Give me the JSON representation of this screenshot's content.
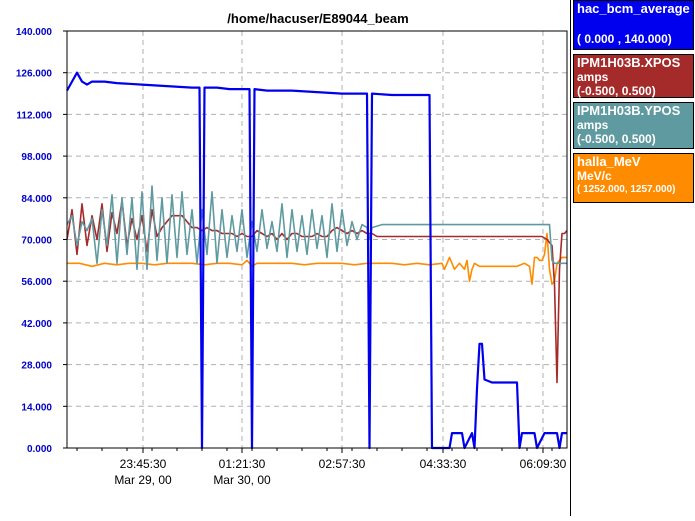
{
  "chart_data": {
    "type": "line",
    "title": "/home/hacuser/E89044_beam",
    "y_ticks": [
      "140.000",
      "126.000",
      "112.000",
      "98.000",
      "84.000",
      "70.000",
      "56.000",
      "42.000",
      "28.000",
      "14.000",
      "0.000"
    ],
    "ylim": [
      0,
      140
    ],
    "x_ticks": [
      {
        "time": "23:45:30",
        "date": "Mar 29, 00"
      },
      {
        "time": "01:21:30",
        "date": "Mar 30, 00"
      },
      {
        "time": "02:57:30",
        "date": ""
      },
      {
        "time": "04:33:30",
        "date": ""
      },
      {
        "time": "06:09:30",
        "date": ""
      }
    ],
    "grid": true,
    "legend_position": "right",
    "series": [
      {
        "name": "hac_bcm_average",
        "unit": "",
        "range": "( 0.000   ,  140.000)",
        "color": "#0000ee",
        "points": [
          [
            0,
            120
          ],
          [
            2,
            123
          ],
          [
            4,
            126
          ],
          [
            6,
            123
          ],
          [
            8,
            122
          ],
          [
            10,
            123
          ],
          [
            15,
            123
          ],
          [
            20,
            122.5
          ],
          [
            30,
            122
          ],
          [
            40,
            121.5
          ],
          [
            50,
            121
          ],
          [
            53,
            121
          ],
          [
            54,
            0
          ],
          [
            55,
            121
          ],
          [
            60,
            121
          ],
          [
            65,
            120.5
          ],
          [
            70,
            120.5
          ],
          [
            73,
            120.5
          ],
          [
            74,
            0
          ],
          [
            75,
            120.5
          ],
          [
            80,
            120
          ],
          [
            90,
            120
          ],
          [
            100,
            119.5
          ],
          [
            110,
            119
          ],
          [
            120,
            119
          ],
          [
            121,
            0
          ],
          [
            122,
            119
          ],
          [
            130,
            118.5
          ],
          [
            140,
            118.5
          ],
          [
            145,
            118.5
          ],
          [
            146,
            0
          ],
          [
            147,
            0
          ],
          [
            148,
            0
          ],
          [
            150,
            0
          ],
          [
            153,
            0
          ],
          [
            154,
            5
          ],
          [
            158,
            5
          ],
          [
            159,
            0
          ],
          [
            162,
            5
          ],
          [
            163,
            0
          ],
          [
            164,
            20
          ],
          [
            165,
            35
          ],
          [
            166,
            35
          ],
          [
            167,
            23
          ],
          [
            170,
            22
          ],
          [
            175,
            22
          ],
          [
            180,
            22
          ],
          [
            181,
            0
          ],
          [
            182,
            5
          ],
          [
            187,
            5
          ],
          [
            188,
            0
          ],
          [
            191,
            5
          ],
          [
            196,
            5
          ],
          [
            197,
            0
          ],
          [
            198,
            5
          ],
          [
            200,
            5
          ]
        ]
      },
      {
        "name": "IPM1H03B.XPOS",
        "unit": "amps",
        "range": "(-0.500,  0.500)",
        "color": "#a52a2a",
        "points": [
          [
            0,
            70
          ],
          [
            2,
            80
          ],
          [
            4,
            65
          ],
          [
            6,
            82
          ],
          [
            8,
            68
          ],
          [
            10,
            78
          ],
          [
            12,
            70
          ],
          [
            14,
            82
          ],
          [
            16,
            66
          ],
          [
            18,
            79
          ],
          [
            20,
            72
          ],
          [
            22,
            83
          ],
          [
            24,
            68
          ],
          [
            26,
            77
          ],
          [
            28,
            70
          ],
          [
            30,
            78
          ],
          [
            32,
            66
          ],
          [
            34,
            80
          ],
          [
            36,
            71
          ],
          [
            38,
            74
          ],
          [
            40,
            76
          ],
          [
            42,
            78
          ],
          [
            44,
            78
          ],
          [
            46,
            78
          ],
          [
            48,
            76
          ],
          [
            50,
            74
          ],
          [
            52,
            74
          ],
          [
            54,
            73
          ],
          [
            56,
            74
          ],
          [
            58,
            73
          ],
          [
            60,
            73
          ],
          [
            62,
            72
          ],
          [
            64,
            72
          ],
          [
            66,
            72
          ],
          [
            68,
            71
          ],
          [
            70,
            72
          ],
          [
            72,
            71
          ],
          [
            74,
            71
          ],
          [
            76,
            73
          ],
          [
            78,
            72
          ],
          [
            80,
            71
          ],
          [
            82,
            72
          ],
          [
            84,
            70
          ],
          [
            86,
            72
          ],
          [
            88,
            70
          ],
          [
            90,
            72
          ],
          [
            92,
            72
          ],
          [
            94,
            71
          ],
          [
            96,
            71
          ],
          [
            98,
            71
          ],
          [
            100,
            72
          ],
          [
            102,
            71
          ],
          [
            104,
            71
          ],
          [
            106,
            73
          ],
          [
            108,
            74
          ],
          [
            110,
            73
          ],
          [
            112,
            72
          ],
          [
            114,
            73
          ],
          [
            116,
            72
          ],
          [
            118,
            73
          ],
          [
            120,
            72
          ],
          [
            122,
            72
          ],
          [
            124,
            71
          ],
          [
            126,
            71
          ],
          [
            128,
            71
          ],
          [
            130,
            71
          ],
          [
            132,
            71
          ],
          [
            134,
            71
          ],
          [
            136,
            71
          ],
          [
            138,
            71
          ],
          [
            140,
            71
          ],
          [
            145,
            71
          ],
          [
            150,
            71
          ],
          [
            160,
            71
          ],
          [
            170,
            71
          ],
          [
            180,
            71
          ],
          [
            185,
            71
          ],
          [
            190,
            71
          ],
          [
            192,
            70
          ],
          [
            194,
            68
          ],
          [
            195,
            55
          ],
          [
            196,
            22
          ],
          [
            197,
            60
          ],
          [
            198,
            72
          ],
          [
            199,
            72
          ],
          [
            200,
            73
          ]
        ]
      },
      {
        "name": "IPM1H03B.YPOS",
        "unit": "amps",
        "range": "(-0.500,  0.500)",
        "color": "#5f9aa0",
        "points": [
          [
            0,
            75
          ],
          [
            2,
            78
          ],
          [
            4,
            68
          ],
          [
            6,
            76
          ],
          [
            8,
            73
          ],
          [
            10,
            77
          ],
          [
            12,
            62
          ],
          [
            14,
            80
          ],
          [
            16,
            68
          ],
          [
            18,
            85
          ],
          [
            20,
            62
          ],
          [
            22,
            84
          ],
          [
            24,
            65
          ],
          [
            26,
            84
          ],
          [
            28,
            60
          ],
          [
            30,
            86
          ],
          [
            32,
            60
          ],
          [
            34,
            88
          ],
          [
            36,
            63
          ],
          [
            38,
            84
          ],
          [
            40,
            62
          ],
          [
            42,
            85
          ],
          [
            44,
            64
          ],
          [
            46,
            86
          ],
          [
            48,
            65
          ],
          [
            50,
            80
          ],
          [
            52,
            62
          ],
          [
            54,
            80
          ],
          [
            56,
            65
          ],
          [
            58,
            86
          ],
          [
            60,
            62
          ],
          [
            62,
            80
          ],
          [
            64,
            64
          ],
          [
            66,
            78
          ],
          [
            68,
            66
          ],
          [
            70,
            80
          ],
          [
            72,
            64
          ],
          [
            74,
            76
          ],
          [
            76,
            66
          ],
          [
            78,
            80
          ],
          [
            80,
            67
          ],
          [
            82,
            76
          ],
          [
            84,
            66
          ],
          [
            86,
            82
          ],
          [
            88,
            64
          ],
          [
            90,
            80
          ],
          [
            92,
            66
          ],
          [
            94,
            78
          ],
          [
            96,
            65
          ],
          [
            98,
            80
          ],
          [
            100,
            67
          ],
          [
            102,
            78
          ],
          [
            104,
            64
          ],
          [
            106,
            82
          ],
          [
            108,
            66
          ],
          [
            110,
            80
          ],
          [
            112,
            68
          ],
          [
            114,
            76
          ],
          [
            116,
            70
          ],
          [
            118,
            75
          ],
          [
            120,
            74
          ],
          [
            121,
            70
          ],
          [
            122,
            74
          ],
          [
            126,
            75
          ],
          [
            130,
            75
          ],
          [
            140,
            75
          ],
          [
            150,
            75
          ],
          [
            160,
            75
          ],
          [
            170,
            75
          ],
          [
            180,
            75
          ],
          [
            190,
            75
          ],
          [
            193,
            75
          ],
          [
            194,
            63
          ],
          [
            195,
            62
          ],
          [
            197,
            62
          ],
          [
            200,
            62
          ]
        ]
      },
      {
        "name": "halla_MeV",
        "unit": "MeV/c",
        "range": "( 1252.000,  1257.000)",
        "color": "#ff8c00",
        "points": [
          [
            0,
            62
          ],
          [
            5,
            62
          ],
          [
            10,
            61
          ],
          [
            15,
            62
          ],
          [
            20,
            61.5
          ],
          [
            25,
            62
          ],
          [
            30,
            62
          ],
          [
            35,
            61.5
          ],
          [
            40,
            62
          ],
          [
            45,
            62
          ],
          [
            50,
            62
          ],
          [
            55,
            61.5
          ],
          [
            60,
            62
          ],
          [
            65,
            62
          ],
          [
            70,
            61.5
          ],
          [
            72,
            63
          ],
          [
            74,
            61
          ],
          [
            76,
            62
          ],
          [
            80,
            62
          ],
          [
            85,
            62
          ],
          [
            90,
            62
          ],
          [
            95,
            61.5
          ],
          [
            100,
            62
          ],
          [
            105,
            62
          ],
          [
            110,
            62
          ],
          [
            115,
            61.5
          ],
          [
            120,
            62
          ],
          [
            125,
            62
          ],
          [
            130,
            62
          ],
          [
            135,
            61.5
          ],
          [
            140,
            62
          ],
          [
            145,
            61.5
          ],
          [
            150,
            62
          ],
          [
            151,
            60
          ],
          [
            153,
            64
          ],
          [
            155,
            60
          ],
          [
            157,
            62
          ],
          [
            159,
            60
          ],
          [
            160,
            63
          ],
          [
            161,
            56
          ],
          [
            162,
            60
          ],
          [
            163,
            62
          ],
          [
            165,
            61
          ],
          [
            170,
            61
          ],
          [
            175,
            61
          ],
          [
            180,
            61
          ],
          [
            183,
            62
          ],
          [
            185,
            61
          ],
          [
            186,
            55
          ],
          [
            187,
            64
          ],
          [
            188,
            64
          ],
          [
            189,
            63
          ],
          [
            190,
            63
          ],
          [
            191,
            65
          ],
          [
            192,
            72
          ],
          [
            193,
            60
          ],
          [
            194,
            55
          ],
          [
            195,
            56
          ],
          [
            196,
            62
          ],
          [
            197,
            63
          ],
          [
            198,
            64
          ],
          [
            200,
            64
          ]
        ]
      }
    ]
  }
}
